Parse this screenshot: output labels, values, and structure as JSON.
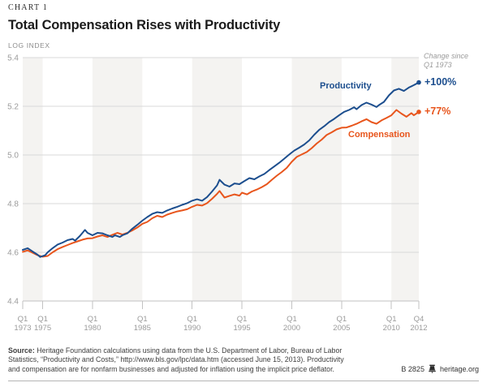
{
  "header": {
    "kicker": "CHART 1",
    "title": "Total Compensation Rises with Productivity",
    "axis_unit": "LOG INDEX"
  },
  "annotations": {
    "change_note": "Change since\nQ1 1973",
    "productivity_pct": "+100%",
    "compensation_pct": "+77%",
    "productivity_label": "Productivity",
    "compensation_label": "Compensation"
  },
  "footer": {
    "source_label": "Source:",
    "source_text": "Heritage Foundation calculations using data from the U.S. Department of Labor, Bureau of Labor\nStatistics, “Productivity and Costs,” http://www.bls.gov/lpc/data.htm (accessed June 15, 2013). Productivity\nand compensation are for nonfarm businesses and adjusted for inflation using the implicit price deflator.",
    "doc_id": "B 2825",
    "site": "heritage.org"
  },
  "colors": {
    "productivity": "#1c4e8e",
    "compensation": "#e8551c",
    "band": "#f4f3f1",
    "grid": "#d9d9d9",
    "axis_line": "#c2c2c2",
    "axis_text": "#9b9b9b"
  },
  "chart_data": {
    "type": "line",
    "title": "Total Compensation Rises with Productivity",
    "ylabel": "LOG INDEX",
    "ylim": [
      4.4,
      5.4
    ],
    "xlim": [
      1973,
      2012.75
    ],
    "y_ticks": [
      4.4,
      4.6,
      4.8,
      5.0,
      5.2,
      5.4
    ],
    "x_ticks": [
      {
        "x": 1973,
        "line1": "Q1",
        "line2": "1973"
      },
      {
        "x": 1975,
        "line1": "Q1",
        "line2": "1975"
      },
      {
        "x": 1980,
        "line1": "Q1",
        "line2": "1980"
      },
      {
        "x": 1985,
        "line1": "Q1",
        "line2": "1985"
      },
      {
        "x": 1990,
        "line1": "Q1",
        "line2": "1990"
      },
      {
        "x": 1995,
        "line1": "Q1",
        "line2": "1995"
      },
      {
        "x": 2000,
        "line1": "Q1",
        "line2": "2000"
      },
      {
        "x": 2005,
        "line1": "Q1",
        "line2": "2005"
      },
      {
        "x": 2010,
        "line1": "Q1",
        "line2": "2010"
      },
      {
        "x": 2012.75,
        "line1": "Q4",
        "line2": "2012"
      }
    ],
    "shaded_bands": [
      [
        1973,
        1975
      ],
      [
        1980,
        1985
      ],
      [
        1990,
        1995
      ],
      [
        2000,
        2005
      ],
      [
        2010,
        2012.75
      ]
    ],
    "series": [
      {
        "name": "Compensation",
        "color_key": "compensation",
        "change_since_start": "+77%",
        "points": [
          [
            1973,
            4.602
          ],
          [
            1973.5,
            4.608
          ],
          [
            1974,
            4.598
          ],
          [
            1974.5,
            4.588
          ],
          [
            1975,
            4.582
          ],
          [
            1975.5,
            4.585
          ],
          [
            1976,
            4.6
          ],
          [
            1976.5,
            4.613
          ],
          [
            1977,
            4.622
          ],
          [
            1977.5,
            4.63
          ],
          [
            1978,
            4.638
          ],
          [
            1978.5,
            4.645
          ],
          [
            1979,
            4.652
          ],
          [
            1979.5,
            4.657
          ],
          [
            1980,
            4.658
          ],
          [
            1980.5,
            4.665
          ],
          [
            1981,
            4.67
          ],
          [
            1981.5,
            4.663
          ],
          [
            1982,
            4.672
          ],
          [
            1982.5,
            4.68
          ],
          [
            1983,
            4.673
          ],
          [
            1983.5,
            4.68
          ],
          [
            1984,
            4.69
          ],
          [
            1984.5,
            4.702
          ],
          [
            1985,
            4.717
          ],
          [
            1985.5,
            4.725
          ],
          [
            1986,
            4.74
          ],
          [
            1986.5,
            4.75
          ],
          [
            1987,
            4.745
          ],
          [
            1987.5,
            4.755
          ],
          [
            1988,
            4.762
          ],
          [
            1988.5,
            4.768
          ],
          [
            1989,
            4.772
          ],
          [
            1989.5,
            4.777
          ],
          [
            1990,
            4.787
          ],
          [
            1990.5,
            4.795
          ],
          [
            1991,
            4.792
          ],
          [
            1991.5,
            4.802
          ],
          [
            1992,
            4.82
          ],
          [
            1992.5,
            4.84
          ],
          [
            1992.75,
            4.852
          ],
          [
            1993.25,
            4.825
          ],
          [
            1993.75,
            4.832
          ],
          [
            1994.25,
            4.838
          ],
          [
            1994.75,
            4.833
          ],
          [
            1995,
            4.845
          ],
          [
            1995.5,
            4.838
          ],
          [
            1996,
            4.85
          ],
          [
            1996.5,
            4.858
          ],
          [
            1997,
            4.868
          ],
          [
            1997.5,
            4.88
          ],
          [
            1998,
            4.898
          ],
          [
            1998.5,
            4.915
          ],
          [
            1999,
            4.93
          ],
          [
            1999.5,
            4.947
          ],
          [
            2000,
            4.972
          ],
          [
            2000.5,
            4.992
          ],
          [
            2001,
            5.002
          ],
          [
            2001.5,
            5.012
          ],
          [
            2002,
            5.028
          ],
          [
            2002.5,
            5.047
          ],
          [
            2003,
            5.063
          ],
          [
            2003.5,
            5.082
          ],
          [
            2004,
            5.093
          ],
          [
            2004.5,
            5.105
          ],
          [
            2005,
            5.112
          ],
          [
            2005.5,
            5.113
          ],
          [
            2006,
            5.12
          ],
          [
            2006.5,
            5.128
          ],
          [
            2007,
            5.138
          ],
          [
            2007.5,
            5.147
          ],
          [
            2008,
            5.135
          ],
          [
            2008.5,
            5.128
          ],
          [
            2009,
            5.142
          ],
          [
            2009.5,
            5.152
          ],
          [
            2010,
            5.163
          ],
          [
            2010.5,
            5.185
          ],
          [
            2011,
            5.17
          ],
          [
            2011.5,
            5.157
          ],
          [
            2012,
            5.172
          ],
          [
            2012.25,
            5.163
          ],
          [
            2012.75,
            5.177
          ]
        ]
      },
      {
        "name": "Productivity",
        "color_key": "productivity",
        "change_since_start": "+100%",
        "points": [
          [
            1973,
            4.61
          ],
          [
            1973.5,
            4.617
          ],
          [
            1974,
            4.603
          ],
          [
            1974.5,
            4.59
          ],
          [
            1974.75,
            4.581
          ],
          [
            1975.25,
            4.588
          ],
          [
            1975.5,
            4.6
          ],
          [
            1976,
            4.617
          ],
          [
            1976.5,
            4.632
          ],
          [
            1977,
            4.64
          ],
          [
            1977.5,
            4.65
          ],
          [
            1978,
            4.655
          ],
          [
            1978.25,
            4.648
          ],
          [
            1978.75,
            4.668
          ],
          [
            1979.25,
            4.692
          ],
          [
            1979.5,
            4.68
          ],
          [
            1980,
            4.67
          ],
          [
            1980.5,
            4.68
          ],
          [
            1981,
            4.678
          ],
          [
            1981.5,
            4.67
          ],
          [
            1982,
            4.663
          ],
          [
            1982.25,
            4.67
          ],
          [
            1982.75,
            4.663
          ],
          [
            1983,
            4.67
          ],
          [
            1983.5,
            4.678
          ],
          [
            1984,
            4.697
          ],
          [
            1984.5,
            4.713
          ],
          [
            1985,
            4.73
          ],
          [
            1985.5,
            4.745
          ],
          [
            1986,
            4.758
          ],
          [
            1986.5,
            4.765
          ],
          [
            1987,
            4.762
          ],
          [
            1987.5,
            4.772
          ],
          [
            1988,
            4.78
          ],
          [
            1988.5,
            4.787
          ],
          [
            1989,
            4.795
          ],
          [
            1989.5,
            4.802
          ],
          [
            1990,
            4.812
          ],
          [
            1990.5,
            4.818
          ],
          [
            1991,
            4.812
          ],
          [
            1991.5,
            4.827
          ],
          [
            1992,
            4.85
          ],
          [
            1992.5,
            4.875
          ],
          [
            1992.75,
            4.898
          ],
          [
            1993.25,
            4.878
          ],
          [
            1993.75,
            4.87
          ],
          [
            1994.25,
            4.883
          ],
          [
            1994.75,
            4.88
          ],
          [
            1995.25,
            4.893
          ],
          [
            1995.75,
            4.905
          ],
          [
            1996.25,
            4.9
          ],
          [
            1996.75,
            4.912
          ],
          [
            1997.25,
            4.922
          ],
          [
            1997.75,
            4.938
          ],
          [
            1998.25,
            4.953
          ],
          [
            1998.75,
            4.968
          ],
          [
            1999.25,
            4.985
          ],
          [
            1999.75,
            5.002
          ],
          [
            2000.25,
            5.018
          ],
          [
            2000.75,
            5.03
          ],
          [
            2001.25,
            5.043
          ],
          [
            2001.75,
            5.06
          ],
          [
            2002.25,
            5.083
          ],
          [
            2002.75,
            5.103
          ],
          [
            2003.25,
            5.118
          ],
          [
            2003.75,
            5.135
          ],
          [
            2004.25,
            5.148
          ],
          [
            2004.75,
            5.163
          ],
          [
            2005.25,
            5.177
          ],
          [
            2005.75,
            5.185
          ],
          [
            2006.25,
            5.196
          ],
          [
            2006.5,
            5.188
          ],
          [
            2007,
            5.205
          ],
          [
            2007.5,
            5.215
          ],
          [
            2008,
            5.207
          ],
          [
            2008.5,
            5.197
          ],
          [
            2008.75,
            5.205
          ],
          [
            2009.25,
            5.218
          ],
          [
            2009.75,
            5.245
          ],
          [
            2010.25,
            5.265
          ],
          [
            2010.75,
            5.272
          ],
          [
            2011.25,
            5.263
          ],
          [
            2011.75,
            5.277
          ],
          [
            2012.25,
            5.287
          ],
          [
            2012.75,
            5.298
          ]
        ]
      }
    ],
    "legend_position": "on-line-labels",
    "grid": true
  }
}
